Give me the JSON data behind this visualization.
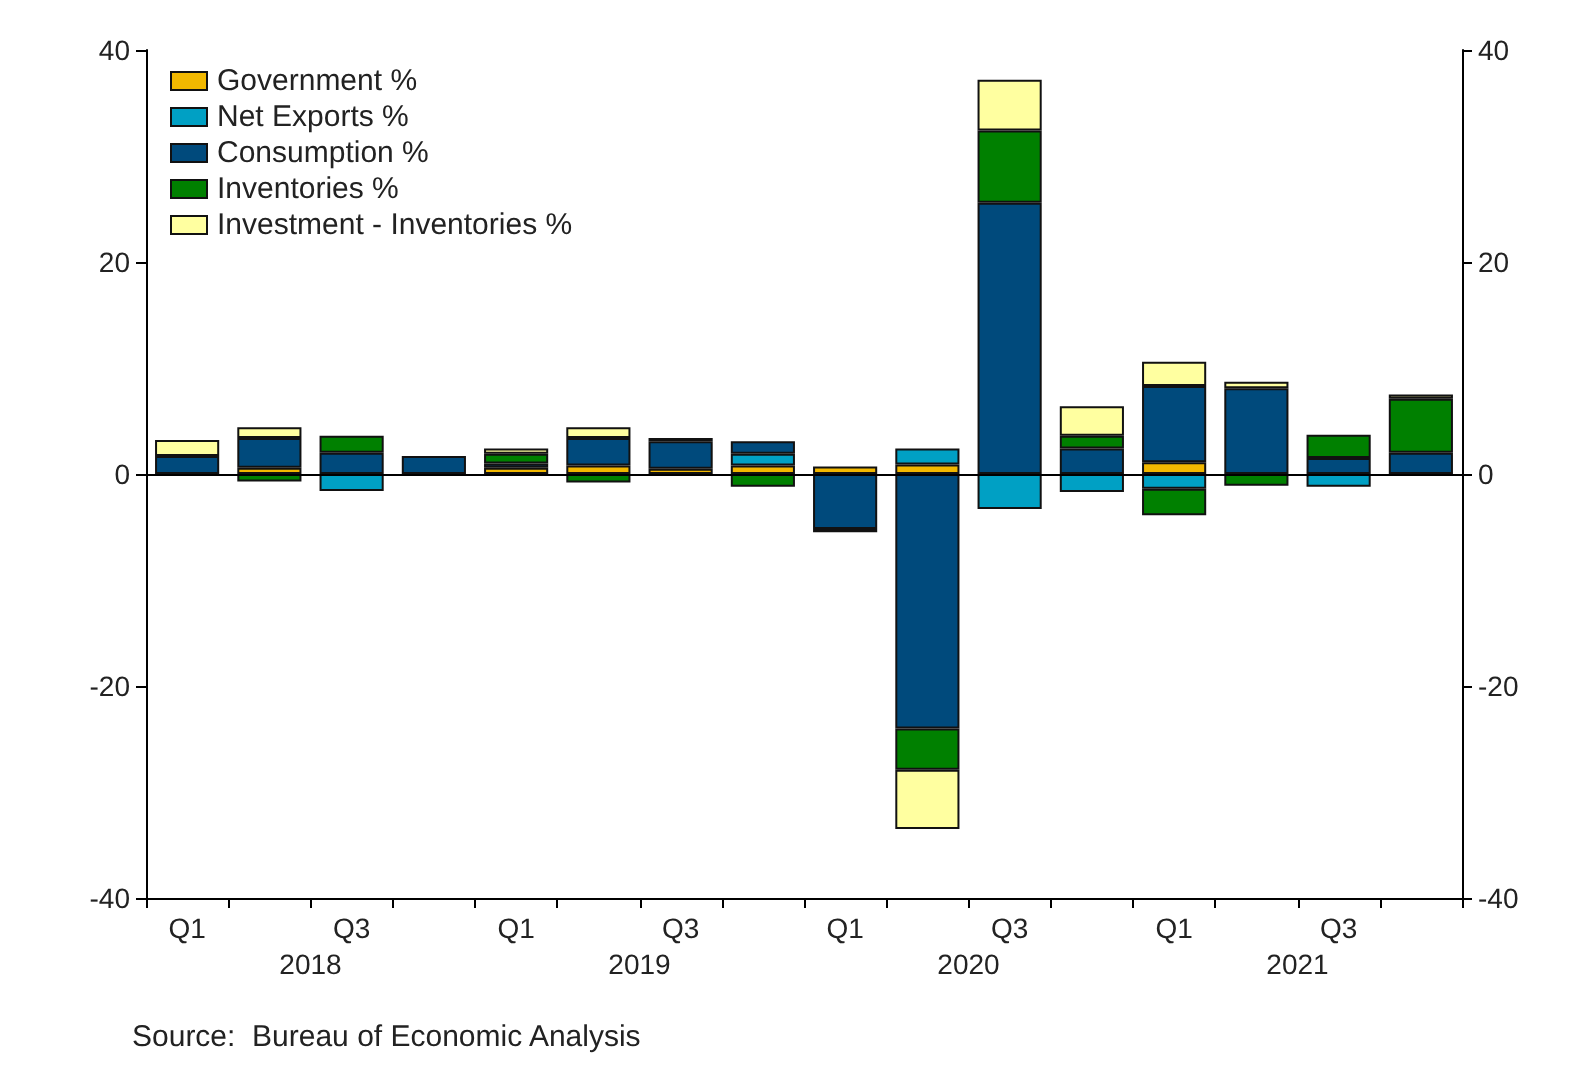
{
  "chart_data": {
    "type": "bar",
    "stacked": true,
    "categories": [
      "Q1",
      null,
      "Q3",
      null,
      "Q1",
      null,
      "Q3",
      null,
      "Q1",
      null,
      "Q3",
      null,
      "Q1",
      null,
      "Q3",
      null
    ],
    "series": [
      {
        "name": "Government %",
        "color": "#f2b800",
        "values": [
          null,
          0.6,
          null,
          null,
          0.6,
          0.8,
          0.5,
          0.8,
          0.7,
          0.9,
          null,
          null,
          1.1,
          null,
          null,
          null
        ]
      },
      {
        "name": "Net Exports %",
        "color": "#00a0c4",
        "values": [
          null,
          null,
          -1.6,
          null,
          null,
          null,
          null,
          1.1,
          null,
          1.5,
          -3.3,
          -1.7,
          -1.4,
          null,
          -1.2,
          null
        ]
      },
      {
        "name": "Consumption %",
        "color": "#004a7c",
        "values": [
          1.7,
          2.8,
          2.0,
          1.7,
          0.4,
          2.6,
          2.6,
          1.2,
          -5.2,
          -24,
          25.6,
          2.4,
          7.2,
          8.1,
          1.5,
          2.0
        ]
      },
      {
        "name": "Inventories %",
        "color": "#008000",
        "values": [
          null,
          -0.7,
          1.6,
          null,
          0.9,
          -0.8,
          -0.2,
          -1.2,
          null,
          -3.9,
          6.8,
          1.2,
          -2.5,
          -1.1,
          2.2,
          5.1
        ]
      },
      {
        "name": "Investment - Inventories %",
        "color": "#ffffa0",
        "values": [
          1.5,
          1.0,
          null,
          null,
          0.5,
          1.0,
          0.3,
          null,
          -0.3,
          -5.6,
          4.8,
          2.8,
          2.3,
          0.6,
          null,
          0.4
        ]
      }
    ],
    "ylim": [
      -40,
      40
    ],
    "yticks": [
      -40,
      -20,
      0,
      20,
      40
    ],
    "y2lim": [
      -40,
      40
    ],
    "y2ticks": [
      -40,
      -20,
      0,
      20,
      40
    ],
    "ref_lines": [
      {
        "axis": "y",
        "value": 0
      }
    ],
    "legend": "top left",
    "grid": false,
    "annotations": [
      "2018",
      "2019",
      "2020",
      "2021",
      "Source:  Bureau of Economic Analysis"
    ]
  }
}
